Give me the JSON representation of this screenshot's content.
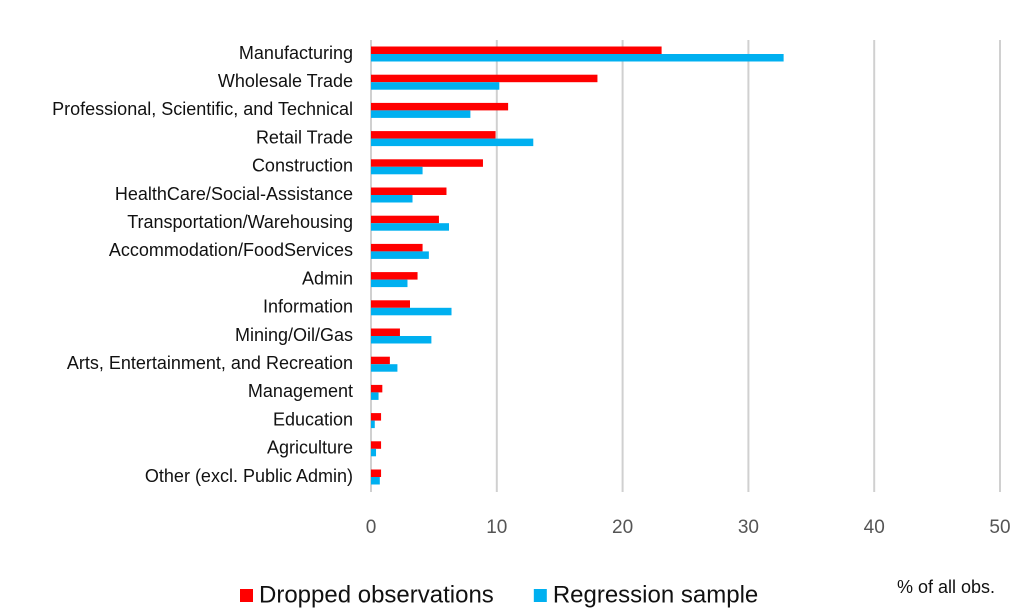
{
  "chart_data": {
    "type": "hbar",
    "categories": [
      "Manufacturing",
      "Wholesale Trade",
      "Professional, Scientific, and Technical",
      "Retail Trade",
      "Construction",
      "HealthCare/Social-Assistance",
      "Transportation/Warehousing",
      "Accommodation/FoodServices",
      "Admin",
      "Information",
      "Mining/Oil/Gas",
      "Arts, Entertainment, and Recreation",
      "Management ",
      "Education",
      "Agriculture",
      "Other (excl. Public Admin)"
    ],
    "series": [
      {
        "name": "Dropped observations",
        "color": "#ff0000",
        "values": [
          23.1,
          18.0,
          10.9,
          9.9,
          8.9,
          6.0,
          5.4,
          4.1,
          3.7,
          3.1,
          2.3,
          1.5,
          0.9,
          0.8,
          0.8,
          0.8
        ]
      },
      {
        "name": "Regression sample",
        "color": "#00b0f0",
        "values": [
          32.8,
          10.2,
          7.9,
          12.9,
          4.1,
          3.3,
          6.2,
          4.6,
          2.9,
          6.4,
          4.8,
          2.1,
          0.6,
          0.3,
          0.4,
          0.7
        ]
      }
    ],
    "xlim": [
      0,
      50
    ],
    "xticks": [
      0,
      10,
      20,
      30,
      40,
      50
    ],
    "grid": true,
    "xlabel": "% of all obs.",
    "legend": "bottom"
  }
}
